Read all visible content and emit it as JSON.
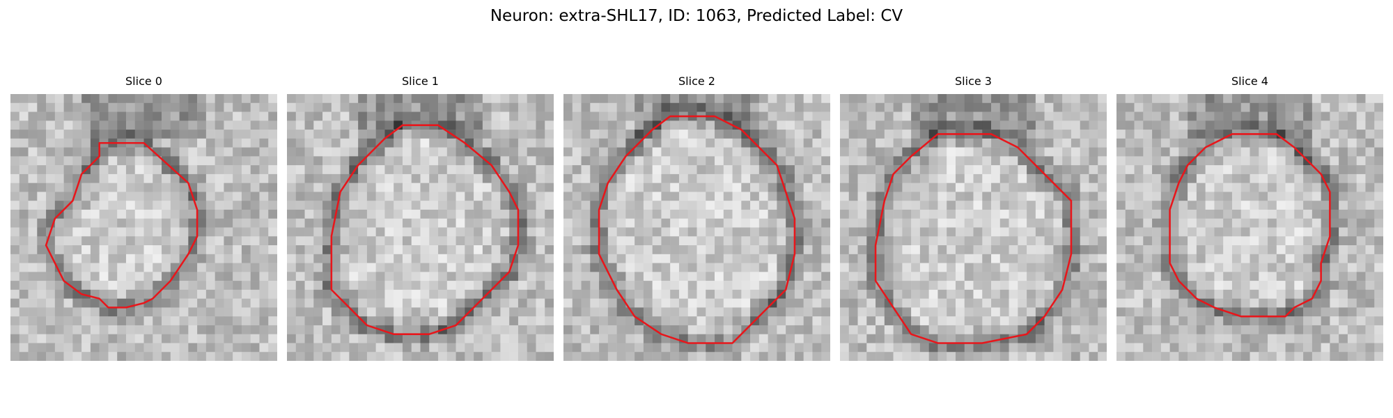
{
  "figure": {
    "title": "Neuron: extra-SHL17, ID: 1063, Predicted Label: CV",
    "contour_color": "#e8161b"
  },
  "panels": [
    {
      "title": "Slice 0",
      "seed": 11,
      "contour": [
        [
          10,
          5.5
        ],
        [
          15,
          5.5
        ],
        [
          20,
          10
        ],
        [
          21,
          13
        ],
        [
          21,
          16
        ],
        [
          20,
          18
        ],
        [
          18,
          21
        ],
        [
          16,
          23
        ],
        [
          15,
          23.5
        ],
        [
          13,
          24
        ],
        [
          11,
          24
        ],
        [
          10,
          23
        ],
        [
          8,
          22.5
        ],
        [
          6,
          21
        ],
        [
          5,
          19
        ],
        [
          4,
          17
        ],
        [
          5,
          14
        ],
        [
          7,
          12
        ],
        [
          8,
          9
        ],
        [
          10,
          7
        ]
      ]
    },
    {
      "title": "Slice 1",
      "seed": 23,
      "contour": [
        [
          13,
          3.5
        ],
        [
          17,
          3.5
        ],
        [
          20,
          5.5
        ],
        [
          23,
          8
        ],
        [
          25,
          11
        ],
        [
          26,
          13
        ],
        [
          26,
          17
        ],
        [
          25,
          20
        ],
        [
          23,
          22
        ],
        [
          21,
          24
        ],
        [
          19,
          26
        ],
        [
          16,
          27
        ],
        [
          12,
          27
        ],
        [
          9,
          26
        ],
        [
          7,
          24
        ],
        [
          5,
          22
        ],
        [
          5,
          16
        ],
        [
          6,
          11
        ],
        [
          8,
          8
        ],
        [
          11,
          5
        ]
      ]
    },
    {
      "title": "Slice 2",
      "seed": 37,
      "contour": [
        [
          12,
          2.5
        ],
        [
          17,
          2.5
        ],
        [
          20,
          4
        ],
        [
          22,
          6
        ],
        [
          24,
          8
        ],
        [
          25,
          11
        ],
        [
          26,
          14
        ],
        [
          26,
          18
        ],
        [
          25,
          22
        ],
        [
          23,
          24
        ],
        [
          21,
          26
        ],
        [
          19,
          28
        ],
        [
          14,
          28
        ],
        [
          11,
          27
        ],
        [
          8,
          25
        ],
        [
          6,
          22
        ],
        [
          4,
          18
        ],
        [
          4,
          13
        ],
        [
          5,
          10
        ],
        [
          7,
          7
        ],
        [
          10,
          4
        ]
      ]
    },
    {
      "title": "Slice 3",
      "seed": 53,
      "contour": [
        [
          11,
          4.5
        ],
        [
          17,
          4.5
        ],
        [
          20,
          6
        ],
        [
          22,
          8
        ],
        [
          25,
          11
        ],
        [
          26,
          12
        ],
        [
          26,
          18
        ],
        [
          25,
          22
        ],
        [
          23,
          25
        ],
        [
          21,
          27
        ],
        [
          16,
          28
        ],
        [
          11,
          28
        ],
        [
          8,
          27
        ],
        [
          6,
          24
        ],
        [
          4,
          21
        ],
        [
          4,
          17
        ],
        [
          5,
          12
        ],
        [
          6,
          9
        ],
        [
          8,
          7
        ]
      ]
    },
    {
      "title": "Slice 4",
      "seed": 71,
      "contour": [
        [
          13,
          4.5
        ],
        [
          18,
          4.5
        ],
        [
          20,
          6
        ],
        [
          22,
          8
        ],
        [
          23,
          9
        ],
        [
          24,
          11
        ],
        [
          24,
          16
        ],
        [
          23,
          19
        ],
        [
          23,
          21
        ],
        [
          22,
          23
        ],
        [
          20,
          24
        ],
        [
          19,
          25
        ],
        [
          14,
          25
        ],
        [
          11,
          24
        ],
        [
          9,
          23
        ],
        [
          7,
          21
        ],
        [
          6,
          19
        ],
        [
          6,
          13
        ],
        [
          7,
          10
        ],
        [
          8,
          8
        ],
        [
          10,
          6
        ]
      ]
    }
  ]
}
